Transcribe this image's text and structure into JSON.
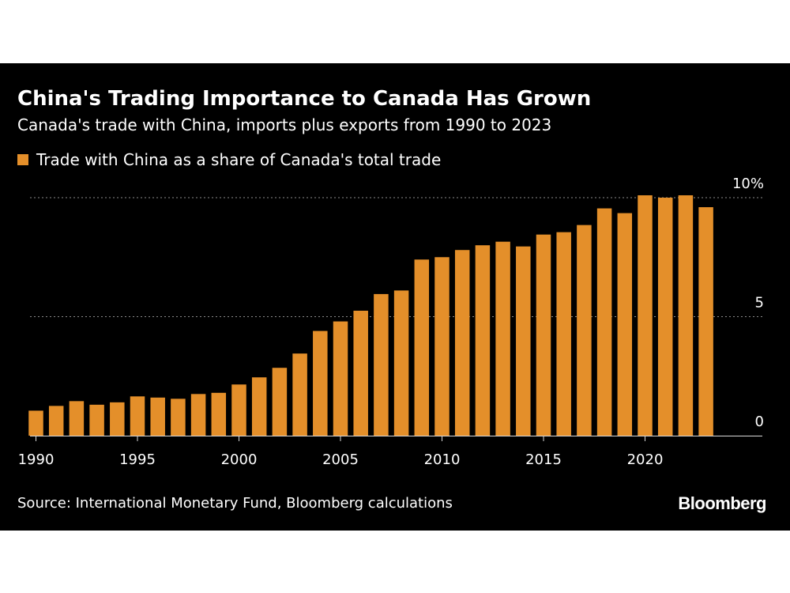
{
  "chart_data": {
    "type": "bar",
    "title": "China's Trading Importance to Canada Has Grown",
    "subtitle": "Canada's trade with China, imports plus exports from 1990 to 2023",
    "xlabel": "",
    "ylabel": "",
    "series": [
      {
        "name": "Trade with China as a share of Canada's total trade",
        "color": "#e48f2a",
        "x": [
          1990,
          1991,
          1992,
          1993,
          1994,
          1995,
          1996,
          1997,
          1998,
          1999,
          2000,
          2001,
          2002,
          2003,
          2004,
          2005,
          2006,
          2007,
          2008,
          2009,
          2010,
          2011,
          2012,
          2013,
          2014,
          2015,
          2016,
          2017,
          2018,
          2019,
          2020,
          2021,
          2022,
          2023
        ],
        "values": [
          1.05,
          1.25,
          1.45,
          1.3,
          1.4,
          1.65,
          1.6,
          1.55,
          1.75,
          1.8,
          2.15,
          2.45,
          2.85,
          3.45,
          4.4,
          4.8,
          5.25,
          5.95,
          6.1,
          7.4,
          7.5,
          7.8,
          8.0,
          8.15,
          7.95,
          8.45,
          8.55,
          8.85,
          9.55,
          9.35,
          10.1,
          10.0,
          10.1,
          9.6
        ]
      }
    ],
    "xlim": [
      1989.5,
      2024
    ],
    "ylim": [
      0,
      10
    ],
    "x_ticks": [
      1990,
      1995,
      2000,
      2005,
      2010,
      2015,
      2020
    ],
    "y_ticks": [
      0,
      5,
      10
    ],
    "y_tick_labels": [
      "0",
      "5",
      "10%"
    ],
    "grid": "horizontal dotted",
    "legend_position": "top-left"
  },
  "footer": {
    "source": "Source: International Monetary Fund, Bloomberg calculations",
    "logo_text": "Bloomberg"
  }
}
